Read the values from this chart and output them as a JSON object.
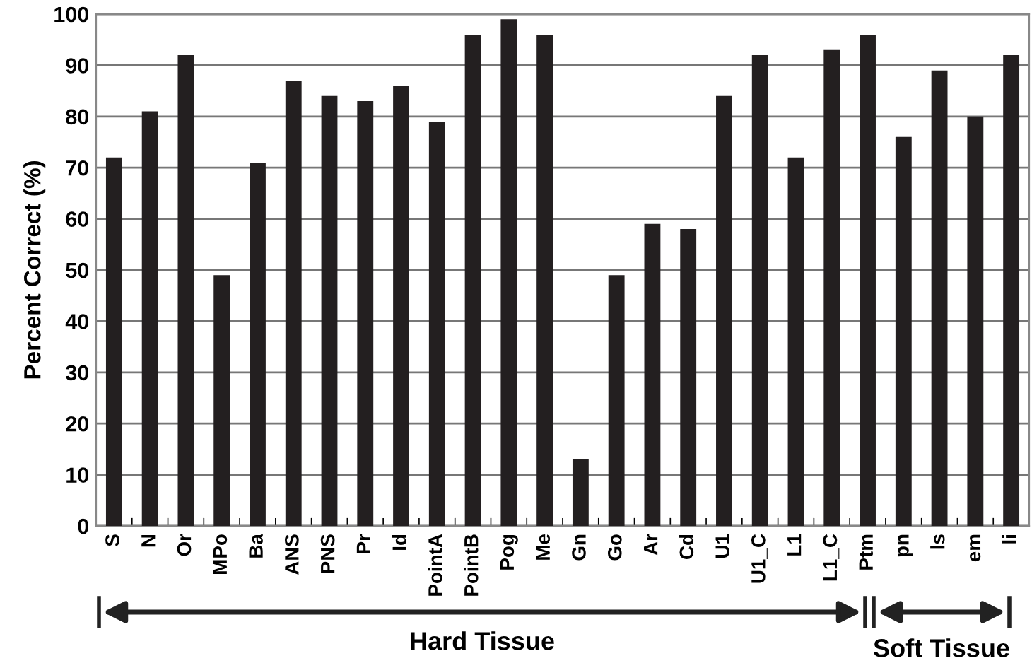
{
  "chart_data": {
    "type": "bar",
    "ylabel": "Percent Correct (%)",
    "categories": [
      "S",
      "N",
      "Or",
      "MPo",
      "Ba",
      "ANS",
      "PNS",
      "Pr",
      "Id",
      "PointA",
      "PointB",
      "Pog",
      "Me",
      "Gn",
      "Go",
      "Ar",
      "Cd",
      "U1",
      "U1_C",
      "L1",
      "L1_C",
      "Ptm",
      "pn",
      "ls",
      "em",
      "li"
    ],
    "values": [
      72,
      81,
      92,
      49,
      71,
      87,
      84,
      83,
      86,
      79,
      96,
      99,
      96,
      13,
      49,
      59,
      58,
      84,
      92,
      72,
      93,
      96,
      76,
      89,
      80,
      92
    ],
    "color": "#231f20",
    "ylim": [
      0,
      100
    ],
    "yticks": [
      0,
      10,
      20,
      30,
      40,
      50,
      60,
      70,
      80,
      90,
      100
    ],
    "grid": "y",
    "annotations": [
      "Hard Tissue",
      "Soft Tissue"
    ]
  }
}
